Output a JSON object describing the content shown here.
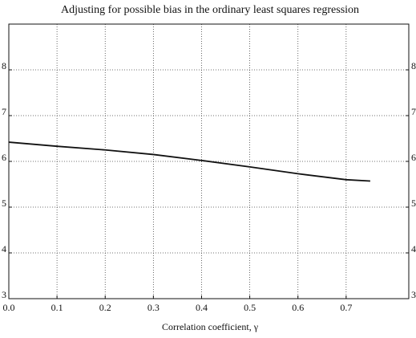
{
  "chart_data": {
    "type": "line",
    "title": "Adjusting for possible bias in the ordinary least squares regression",
    "xlabel": "Correlation coefficient, γ",
    "x": [
      0,
      0.1,
      0.2,
      0.3,
      0.4,
      0.5,
      0.6,
      0.7,
      0.75
    ],
    "series": [
      {
        "name": null,
        "color": "#111111",
        "values": [
          6.42,
          6.33,
          6.25,
          6.15,
          6.02,
          5.88,
          5.73,
          5.6,
          5.57
        ]
      }
    ],
    "xlim": [
      0,
      0.83
    ],
    "xticks": [
      {
        "value": 0,
        "label": "0.0"
      },
      0.1,
      0.2,
      0.3,
      0.4,
      0.5,
      0.6,
      0.7
    ],
    "ylim": [
      3,
      9
    ],
    "yticks": [
      3,
      4,
      5,
      6,
      7,
      8
    ],
    "grid": true
  }
}
